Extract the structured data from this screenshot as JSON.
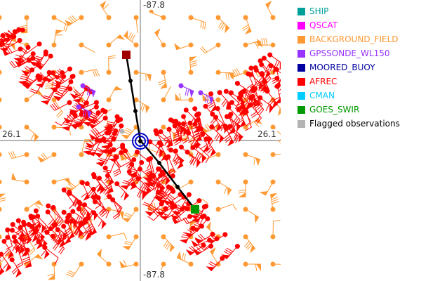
{
  "axes": {
    "top_label": "-87.8",
    "bottom_label": "-87.8",
    "left_label": "26.1",
    "right_label": "26.1"
  },
  "legend": [
    {
      "label": "SHIP",
      "color": "#00a09a"
    },
    {
      "label": "QSCAT",
      "color": "#ff00ff"
    },
    {
      "label": "BACKGROUND_FIELD",
      "color": "#ff9933"
    },
    {
      "label": "GPSSONDE_WL150",
      "color": "#9933ff"
    },
    {
      "label": "MOORED_BUOY",
      "color": "#0000a0"
    },
    {
      "label": "AFREC",
      "color": "#ff0000"
    },
    {
      "label": "CMAN",
      "color": "#00ccff"
    },
    {
      "label": "GOES_SWIR",
      "color": "#009900"
    },
    {
      "label": "Flagged observations",
      "color": "#b4b4b4",
      "text_color": "#000000"
    }
  ],
  "colors": {
    "background_field": "#ff9933",
    "afrec": "#ff0000",
    "track": "#000000",
    "buoy": "#0000cc",
    "track_start": "#a00000",
    "track_end": "#009900",
    "crosshair": "#808080"
  }
}
